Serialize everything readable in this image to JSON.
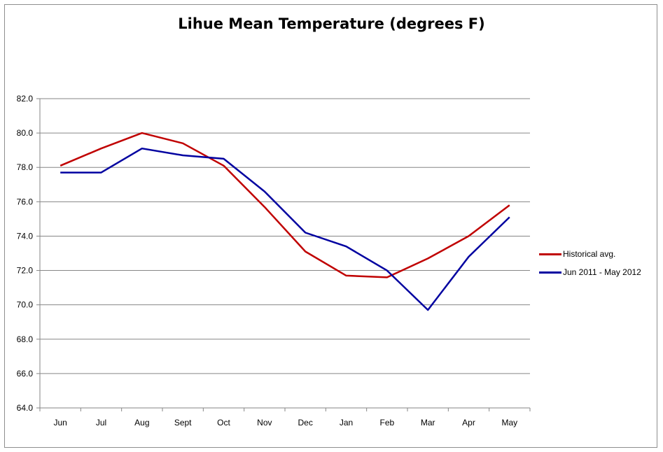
{
  "chart_data": {
    "type": "line",
    "title": "Lihue Mean Temperature (degrees F)",
    "xlabel": "",
    "ylabel": "",
    "categories": [
      "Jun",
      "Jul",
      "Aug",
      "Sept",
      "Oct",
      "Nov",
      "Dec",
      "Jan",
      "Feb",
      "Mar",
      "Apr",
      "May"
    ],
    "ylim": [
      64.0,
      82.0
    ],
    "yticks": [
      "64.0",
      "66.0",
      "68.0",
      "70.0",
      "72.0",
      "74.0",
      "76.0",
      "78.0",
      "80.0",
      "82.0"
    ],
    "grid": true,
    "legend_position": "right",
    "series": [
      {
        "name": "Historical avg.",
        "color": "#c00000",
        "values": [
          78.1,
          79.1,
          80.0,
          79.4,
          78.1,
          75.7,
          73.1,
          71.7,
          71.6,
          72.7,
          74.0,
          75.8
        ]
      },
      {
        "name": "Jun 2011 - May 2012",
        "color": "#0000a0",
        "values": [
          77.7,
          77.7,
          79.1,
          78.7,
          78.5,
          76.6,
          74.2,
          73.4,
          72.0,
          69.7,
          72.8,
          75.1
        ]
      }
    ]
  }
}
